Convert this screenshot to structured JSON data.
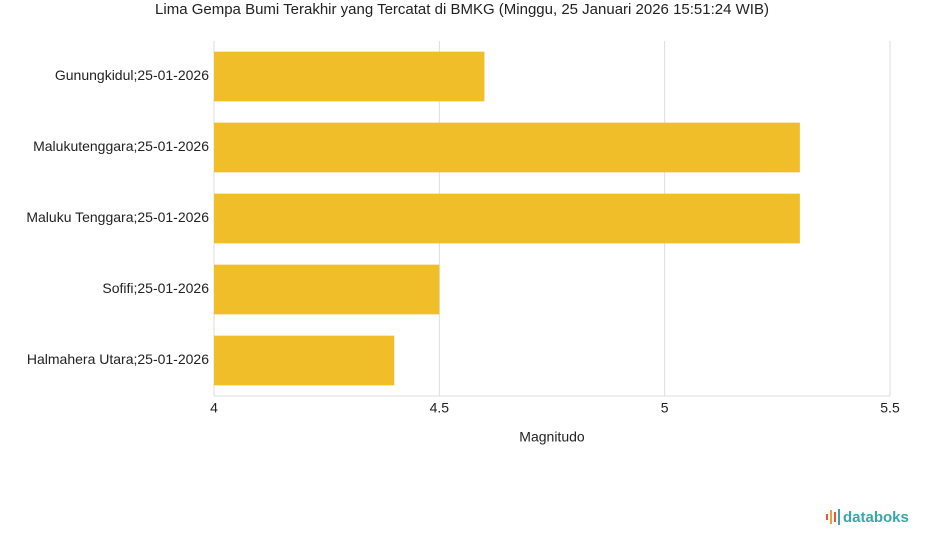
{
  "chart_data": {
    "type": "bar",
    "orientation": "horizontal",
    "title": "Lima Gempa Bumi Terakhir yang Tercatat di BMKG (Minggu, 25 Januari 2026 15:51:24 WIB)",
    "categories": [
      "Gunungkidul;25-01-2026",
      "Malukutenggara;25-01-2026",
      "Maluku Tenggara;25-01-2026",
      "Sofifi;25-01-2026",
      "Halmahera Utara;25-01-2026"
    ],
    "values": [
      4.6,
      5.3,
      5.3,
      4.5,
      4.4
    ],
    "color": "#f0be29",
    "x_label": "Magnitudo",
    "xlim": [
      4,
      5.5
    ],
    "xticks": [
      4,
      4.5,
      5,
      5.5
    ],
    "grid": true,
    "brand": "databoks"
  }
}
